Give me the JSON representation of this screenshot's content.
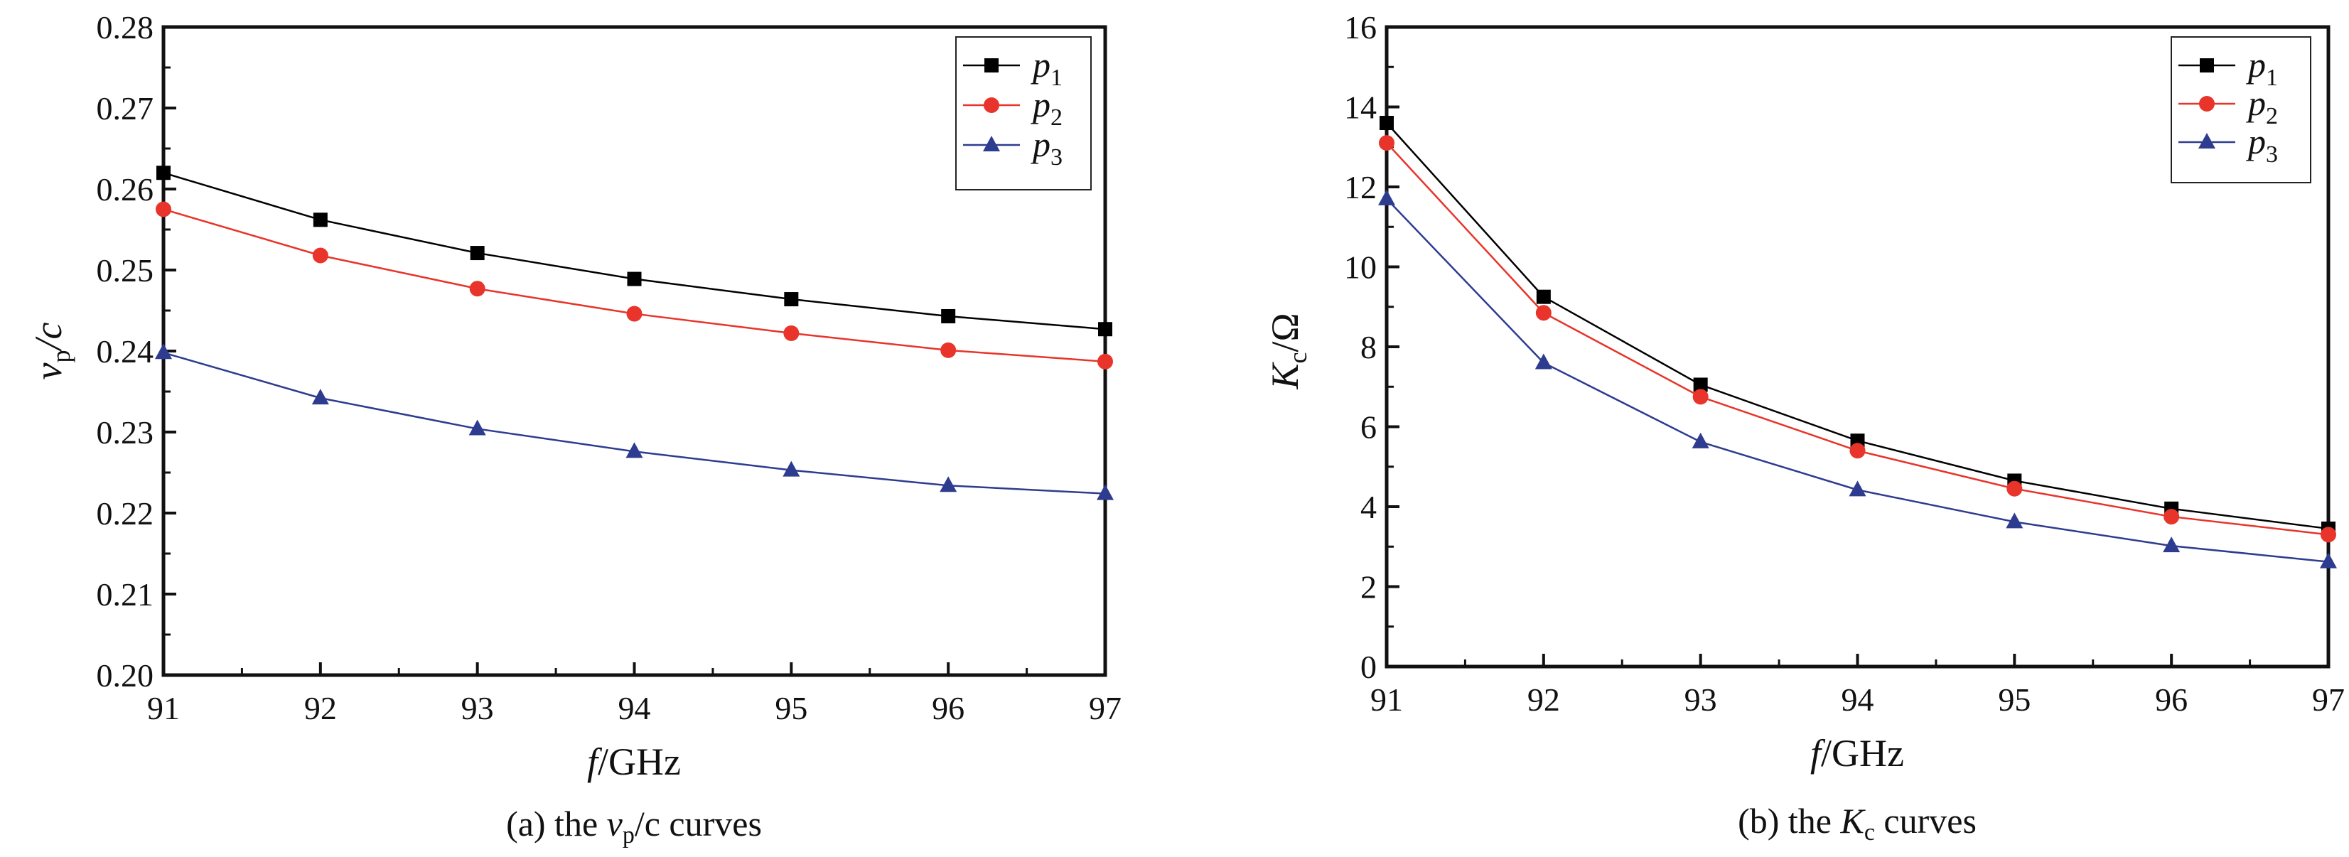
{
  "chart_data": [
    {
      "type": "line",
      "caption": {
        "pre": "(a) the ",
        "v": "v",
        "sub": "p",
        "post": "/c curves"
      },
      "ylabel": {
        "v": "v",
        "sub": "p",
        "post": "/c"
      },
      "xlabel": {
        "f": "f",
        "post": "/GHz"
      },
      "x": [
        91,
        92,
        93,
        94,
        95,
        96,
        97
      ],
      "xlim": [
        91,
        97
      ],
      "ylim": [
        0.2,
        0.28
      ],
      "xticks": [
        "91",
        "92",
        "93",
        "94",
        "95",
        "96",
        "97"
      ],
      "yticks": [
        "0.20",
        "0.21",
        "0.22",
        "0.23",
        "0.24",
        "0.25",
        "0.26",
        "0.27",
        "0.28"
      ],
      "legend_position": "top-right",
      "series": [
        {
          "name": "p",
          "sub": "1",
          "color": "#000000",
          "marker": "square",
          "values": [
            0.262,
            0.2562,
            0.2521,
            0.2489,
            0.2464,
            0.2443,
            0.2427
          ]
        },
        {
          "name": "p",
          "sub": "2",
          "color": "#e8342a",
          "marker": "circle",
          "values": [
            0.2575,
            0.2518,
            0.2477,
            0.2446,
            0.2422,
            0.2401,
            0.2387
          ]
        },
        {
          "name": "p",
          "sub": "3",
          "color": "#2e3c8f",
          "marker": "triangle",
          "values": [
            0.2398,
            0.2342,
            0.2304,
            0.2276,
            0.2253,
            0.2234,
            0.2224
          ]
        }
      ]
    },
    {
      "type": "line",
      "caption": {
        "pre": "(b)  the ",
        "v": "K",
        "sub": "c",
        "post": " curves"
      },
      "ylabel": {
        "v": "K",
        "sub": "c",
        "post": "/Ω"
      },
      "xlabel": {
        "f": "f",
        "post": "/GHz"
      },
      "x": [
        91,
        92,
        93,
        94,
        95,
        96,
        97
      ],
      "xlim": [
        91,
        97
      ],
      "ylim": [
        0,
        16
      ],
      "xticks": [
        "91",
        "92",
        "93",
        "94",
        "95",
        "96",
        "97"
      ],
      "yticks": [
        "0",
        "2",
        "4",
        "6",
        "8",
        "10",
        "12",
        "14",
        "16"
      ],
      "legend_position": "top-right",
      "series": [
        {
          "name": "p",
          "sub": "1",
          "color": "#000000",
          "marker": "square",
          "values": [
            13.6,
            9.25,
            7.05,
            5.65,
            4.65,
            3.95,
            3.45
          ]
        },
        {
          "name": "p",
          "sub": "2",
          "color": "#e8342a",
          "marker": "circle",
          "values": [
            13.1,
            8.85,
            6.75,
            5.4,
            4.45,
            3.75,
            3.3
          ]
        },
        {
          "name": "p",
          "sub": "3",
          "color": "#2e3c8f",
          "marker": "triangle",
          "values": [
            11.7,
            7.6,
            5.62,
            4.42,
            3.62,
            3.02,
            2.62
          ]
        }
      ]
    }
  ]
}
